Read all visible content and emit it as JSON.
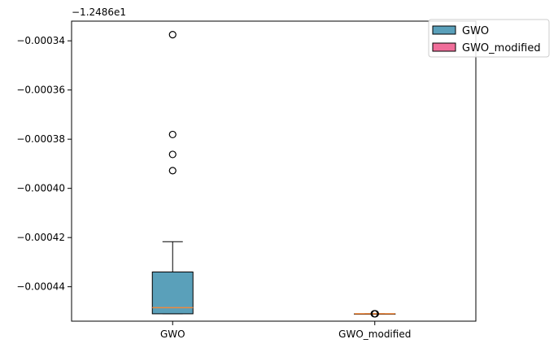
{
  "chart_data": {
    "type": "box",
    "title": "",
    "xlabel": "",
    "ylabel": "",
    "y_offset_label": "−1.2486e1",
    "categories": [
      "GWO",
      "GWO_modified"
    ],
    "ylim": [
      -0.000454,
      -0.000332
    ],
    "yticks": [
      -0.00034,
      -0.00036,
      -0.00038,
      -0.0004,
      -0.00042,
      -0.00044
    ],
    "ytick_labels": [
      "−0.00034",
      "−0.00036",
      "−0.00038",
      "−0.00040",
      "−0.00042",
      "−0.00044"
    ],
    "legend_position": "top-right",
    "median_color": "#f0883c",
    "series": [
      {
        "name": "GWO",
        "color": "#5aa0ba",
        "whisker_low": -0.000451,
        "q1": -0.000451,
        "median": -0.0004485,
        "q3": -0.000434,
        "whisker_high": -0.0004217,
        "outliers": [
          -0.0003375,
          -0.0003781,
          -0.0003862,
          -0.0003928
        ]
      },
      {
        "name": "GWO_modified",
        "color": "#f06e9a",
        "whisker_low": -0.000451,
        "q1": -0.000451,
        "median": -0.000451,
        "q3": -0.000451,
        "whisker_high": -0.000451,
        "outliers": [
          -0.000451,
          -0.000451
        ]
      }
    ]
  }
}
